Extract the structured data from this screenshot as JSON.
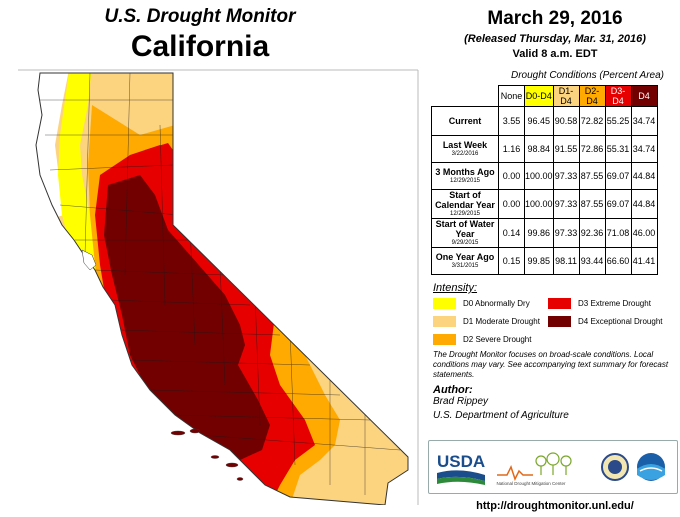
{
  "header": {
    "top_title": "U.S. Drought Monitor",
    "region": "California",
    "date": "March 29, 2016",
    "released": "(Released Thursday, Mar. 31, 2016)",
    "valid": "Valid 8 a.m. EDT"
  },
  "table": {
    "caption": "Drought Conditions (Percent Area)",
    "columns": [
      {
        "label": "None",
        "color": "#ffffff"
      },
      {
        "label": "D0-D4",
        "color": "#ffff00"
      },
      {
        "label": "D1-D4",
        "color": "#fcd37f"
      },
      {
        "label": "D2-D4",
        "color": "#ffaa00"
      },
      {
        "label": "D3-D4",
        "color": "#e60000"
      },
      {
        "label": "D4",
        "color": "#730000"
      }
    ],
    "rows": [
      {
        "label": "Current",
        "sub": "",
        "values": [
          "3.55",
          "96.45",
          "90.58",
          "72.82",
          "55.25",
          "34.74"
        ]
      },
      {
        "label": "Last Week",
        "sub": "3/22/2016",
        "values": [
          "1.16",
          "98.84",
          "91.55",
          "72.86",
          "55.31",
          "34.74"
        ]
      },
      {
        "label": "3 Months Ago",
        "sub": "12/29/2015",
        "values": [
          "0.00",
          "100.00",
          "97.33",
          "87.55",
          "69.07",
          "44.84"
        ]
      },
      {
        "label": "Start of Calendar Year",
        "sub": "12/29/2015",
        "values": [
          "0.00",
          "100.00",
          "97.33",
          "87.55",
          "69.07",
          "44.84"
        ]
      },
      {
        "label": "Start of Water Year",
        "sub": "9/29/2015",
        "values": [
          "0.14",
          "99.86",
          "97.33",
          "92.36",
          "71.08",
          "46.00"
        ]
      },
      {
        "label": "One Year Ago",
        "sub": "3/31/2015",
        "values": [
          "0.15",
          "99.85",
          "98.11",
          "93.44",
          "66.60",
          "41.41"
        ]
      }
    ]
  },
  "legend": {
    "title": "Intensity:",
    "items": [
      {
        "label": "D0 Abnormally Dry",
        "color": "#ffff00"
      },
      {
        "label": "D1 Moderate Drought",
        "color": "#fcd37f"
      },
      {
        "label": "D2 Severe Drought",
        "color": "#ffaa00"
      },
      {
        "label": "D3 Extreme Drought",
        "color": "#e60000"
      },
      {
        "label": "D4 Exceptional Drought",
        "color": "#730000"
      }
    ]
  },
  "note": "The Drought Monitor focuses on broad-scale conditions. Local conditions may vary. See accompanying text summary for forecast statements.",
  "author": {
    "heading": "Author:",
    "name": "Brad Rippey",
    "org": "U.S. Department of Agriculture"
  },
  "logos": {
    "usda": "USDA",
    "ndmc": "National Drought Mitigation Center"
  },
  "url": "http://droughtmonitor.unl.edu/"
}
